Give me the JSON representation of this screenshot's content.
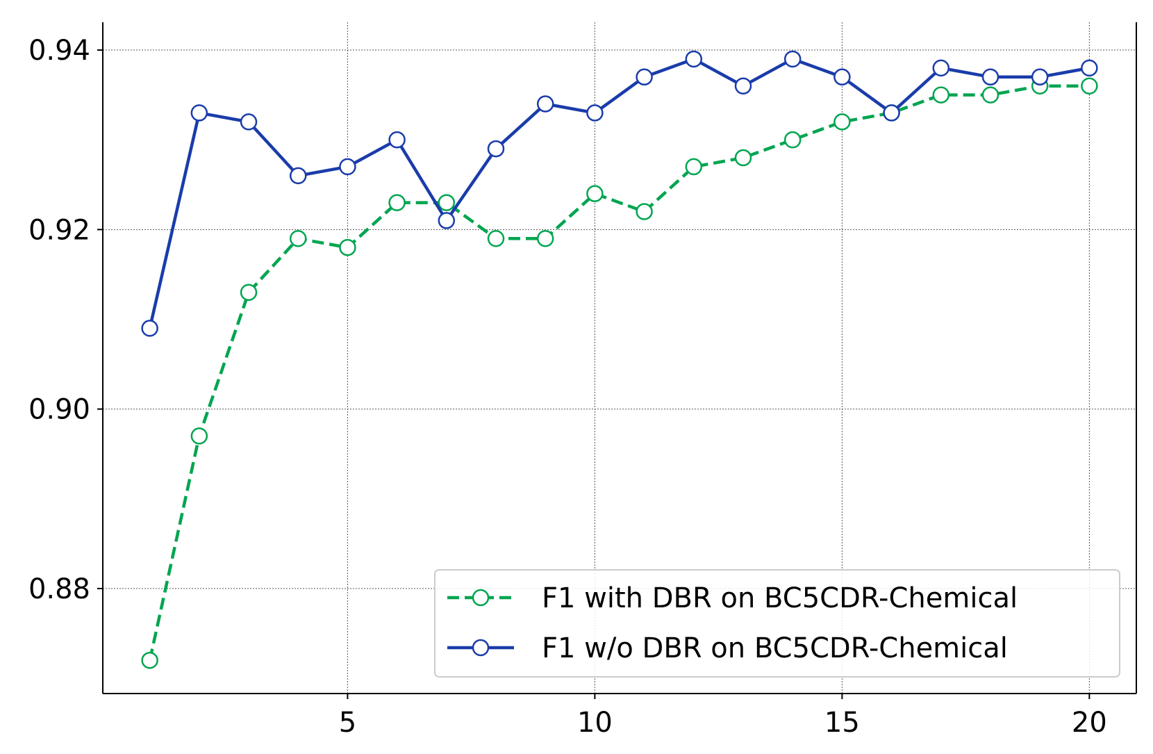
{
  "colors": {
    "with_dbr": "#00a550",
    "without_dbr": "#1a3caa",
    "grid": "#555555",
    "axis": "#000000",
    "legend_border": "#cccccc"
  },
  "chart_data": {
    "type": "line",
    "title": "",
    "xlabel": "",
    "ylabel": "",
    "xlim": [
      0.05,
      20.95
    ],
    "ylim": [
      0.8683,
      0.9431
    ],
    "xticks": [
      5,
      10,
      15,
      20
    ],
    "xtick_labels": [
      "5",
      "10",
      "15",
      "20"
    ],
    "yticks": [
      0.88,
      0.9,
      0.92,
      0.94
    ],
    "ytick_labels": [
      "0.88",
      "0.90",
      "0.92",
      "0.94"
    ],
    "grid": true,
    "legend_position": "lower-right",
    "x": [
      1,
      2,
      3,
      4,
      5,
      6,
      7,
      8,
      9,
      10,
      11,
      12,
      13,
      14,
      15,
      16,
      17,
      18,
      19,
      20
    ],
    "series": [
      {
        "name": "F1 with DBR on BC5CDR-Chemical",
        "style": "dashed",
        "marker": "open-circle",
        "color_key": "with_dbr",
        "values": [
          0.872,
          0.897,
          0.913,
          0.919,
          0.918,
          0.923,
          0.923,
          0.919,
          0.919,
          0.924,
          0.922,
          0.927,
          0.928,
          0.93,
          0.932,
          0.933,
          0.935,
          0.935,
          0.936,
          0.936
        ]
      },
      {
        "name": "F1 w/o DBR on BC5CDR-Chemical",
        "style": "solid",
        "marker": "open-circle",
        "color_key": "without_dbr",
        "values": [
          0.909,
          0.933,
          0.932,
          0.926,
          0.927,
          0.93,
          0.921,
          0.929,
          0.934,
          0.933,
          0.937,
          0.939,
          0.936,
          0.939,
          0.937,
          0.933,
          0.938,
          0.937,
          0.937,
          0.938
        ]
      }
    ]
  }
}
